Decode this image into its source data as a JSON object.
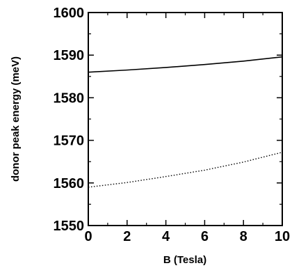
{
  "chart_data": {
    "type": "line",
    "title": "",
    "xlabel": "B (Tesla)",
    "ylabel": "donor peak energy (meV)",
    "xlim": [
      0,
      10
    ],
    "ylim": [
      1550,
      1600
    ],
    "x_ticks": [
      0,
      2,
      4,
      6,
      8,
      10
    ],
    "y_ticks": [
      1550,
      1560,
      1570,
      1580,
      1590,
      1600
    ],
    "grid": false,
    "legend": "none",
    "series": [
      {
        "style": "solid",
        "color": "#000000",
        "x": [
          0,
          2,
          4,
          6,
          8,
          10
        ],
        "y": [
          1586.0,
          1586.5,
          1587.1,
          1587.8,
          1588.6,
          1589.6
        ]
      },
      {
        "style": "dotted",
        "color": "#000000",
        "x": [
          0,
          2,
          4,
          6,
          8,
          10
        ],
        "y": [
          1559.0,
          1560.1,
          1561.5,
          1563.0,
          1564.9,
          1567.2
        ]
      }
    ]
  }
}
